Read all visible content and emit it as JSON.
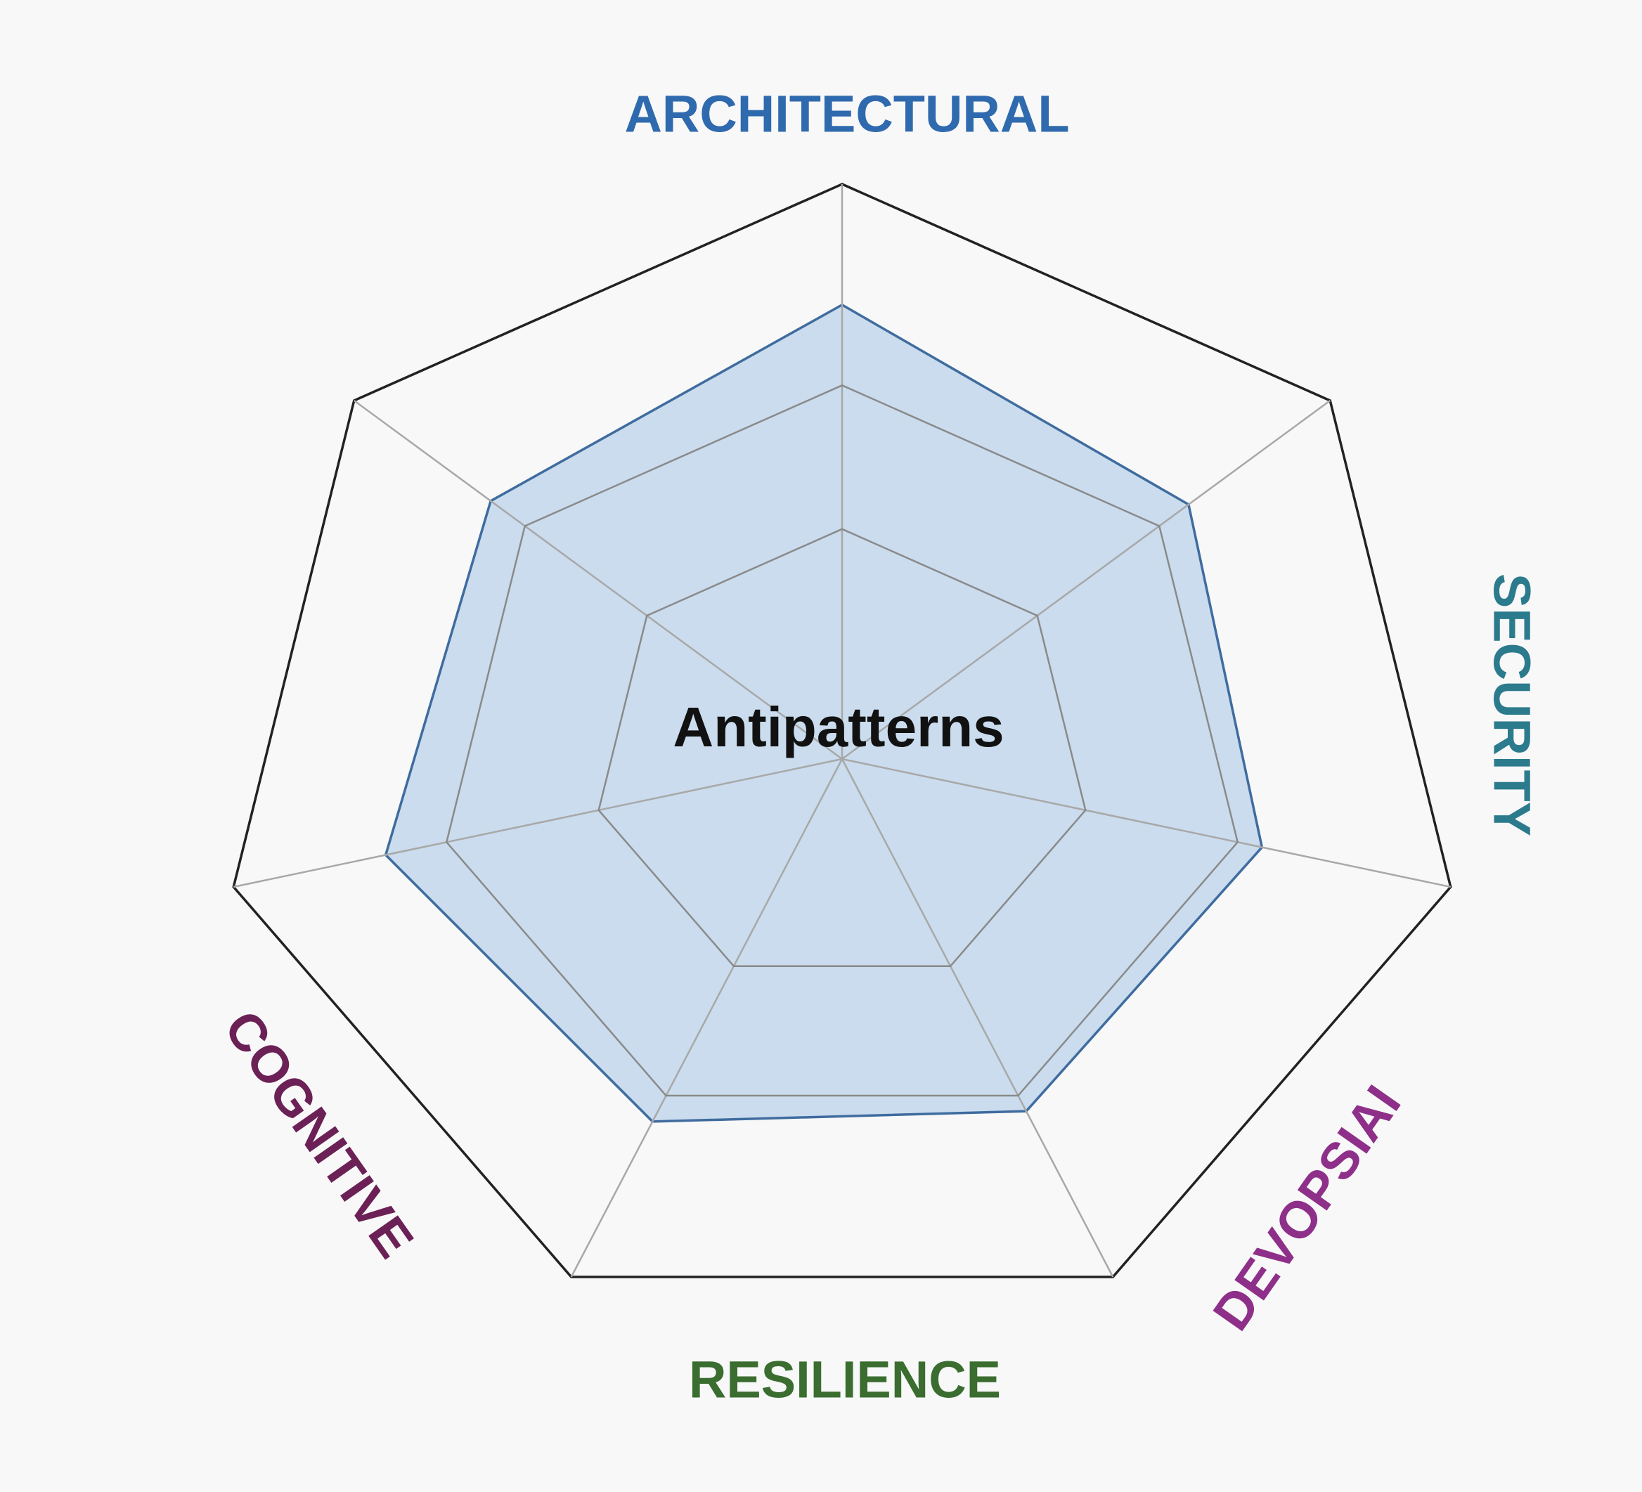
{
  "chart_data": {
    "type": "radar",
    "title": "Antipatterns",
    "categories": [
      "ARCHITECTURAL",
      "SECURITY",
      "DEVOPSIAI",
      "RESILIENCE",
      null,
      "COGNITIVE",
      null
    ],
    "values": [
      79,
      71,
      69,
      68,
      70,
      75,
      72
    ],
    "color": "#c2d7eb",
    "rlim": [
      0,
      100
    ],
    "rticks": [
      40,
      65,
      100
    ]
  }
}
